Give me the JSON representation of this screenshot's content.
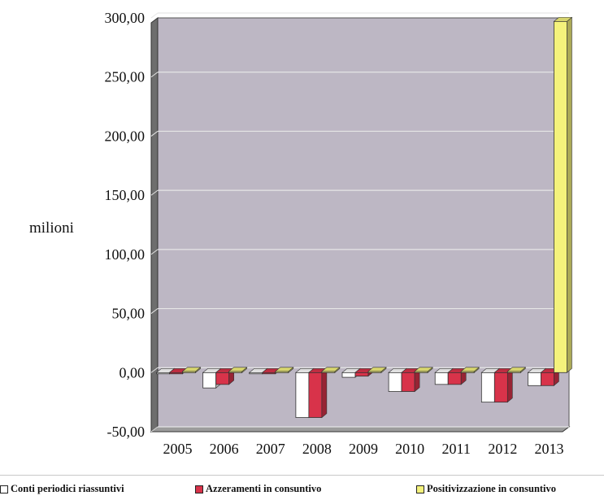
{
  "chart_data": {
    "type": "bar",
    "title": "",
    "xlabel": "",
    "ylabel": "milioni",
    "ylim": [
      -50,
      300
    ],
    "yticks": [
      "-50,00",
      "0,00",
      "50,00",
      "100,00",
      "150,00",
      "200,00",
      "250,00",
      "300,00"
    ],
    "ytick_values": [
      -50,
      0,
      50,
      100,
      150,
      200,
      250,
      300
    ],
    "grid": true,
    "legend_position": "bottom",
    "categories": [
      "2005",
      "2006",
      "2007",
      "2008",
      "2009",
      "2010",
      "2011",
      "2012",
      "2013"
    ],
    "series": [
      {
        "name": "Conti periodici riassuntivi",
        "color": "#ffffff",
        "values": [
          -1,
          -13,
          -1,
          -38,
          -4,
          -16,
          -10,
          -25,
          -11
        ]
      },
      {
        "name": "Azzeramenti in consuntivo",
        "color": "#d8334a",
        "values": [
          -1,
          -10,
          -1,
          -38,
          -3,
          -16,
          -10,
          -25,
          -11
        ]
      },
      {
        "name": "Positivizzazione in consuntivo",
        "color": "#f4f27c",
        "values": [
          1,
          1,
          1,
          1,
          1,
          1,
          1,
          1,
          297
        ]
      }
    ]
  }
}
